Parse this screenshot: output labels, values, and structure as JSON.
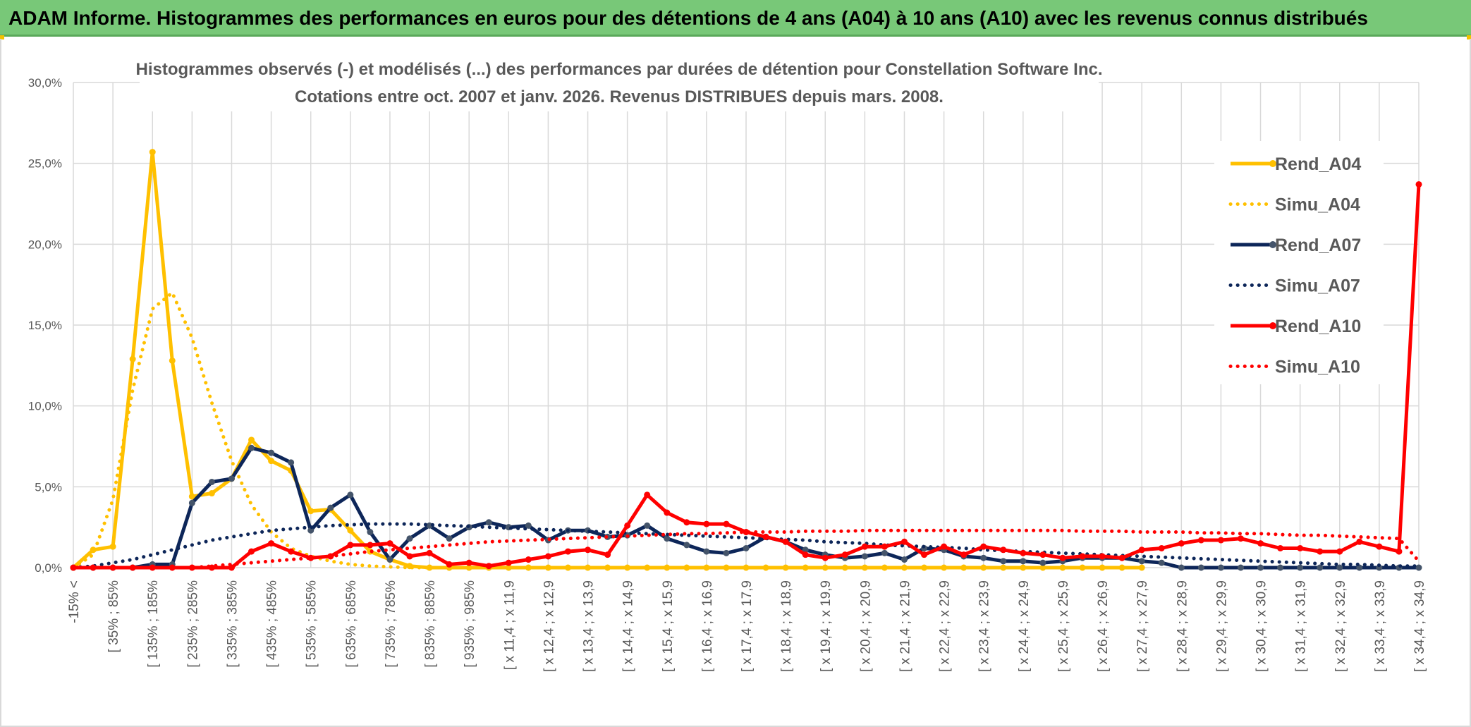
{
  "banner": {
    "title": "ADAM Informe. Histogrammes des performances en euros pour des détentions de 4 ans (A04) à 10 ans (A10) avec les revenus connus distribués"
  },
  "colors": {
    "banner_bg": "#78c878",
    "rend_a04": "#ffc000",
    "simu_a04": "#ffc000",
    "rend_a07": "#0d2659",
    "simu_a07": "#0d2659",
    "rend_a10": "#ff0000",
    "simu_a10": "#ff0000",
    "grid": "#d9d9d9",
    "text": "#595959"
  },
  "chart_data": {
    "type": "line",
    "title_line1": "Histogrammes observés (-) et modélisés (...) des performances par durées de détention pour Constellation Software Inc.",
    "title_line2": "Cotations entre oct. 2007 et janv. 2026. Revenus DISTRIBUES depuis mars. 2008.",
    "xlabel": "",
    "ylabel": "",
    "ylim": [
      0,
      30
    ],
    "yticks": [
      "0,0%",
      "5,0%",
      "10,0%",
      "15,0%",
      "20,0%",
      "25,0%",
      "30,0%"
    ],
    "grid": true,
    "legend_position": "right",
    "x_count": 69,
    "x_tick_labels": [
      "-15% <",
      "[ 35% ; 85%",
      "[ 135% ; 185%",
      "[ 235% ; 285%",
      "[ 335% ; 385%",
      "[ 435% ; 485%",
      "[ 535% ; 585%",
      "[ 635% ; 685%",
      "[ 735% ; 785%",
      "[ 835% ; 885%",
      "[ 935% ; 985%",
      "[ x 11,4 ; x 11,9",
      "[ x 12,4 ; x 12,9",
      "[ x 13,4 ; x 13,9",
      "[ x 14,4 ; x 14,9",
      "[ x 15,4 ; x 15,9",
      "[ x 16,4 ; x 16,9",
      "[ x 17,4 ; x 17,9",
      "[ x 18,4 ; x 18,9",
      "[ x 19,4 ; x 19,9",
      "[ x 20,4 ; x 20,9",
      "[ x 21,4 ; x 21,9",
      "[ x 22,4 ; x 22,9",
      "[ x 23,4 ; x 23,9",
      "[ x 24,4 ; x 24,9",
      "[ x 25,4 ; x 25,9",
      "[ x 26,4 ; x 26,9",
      "[ x 27,4 ; x 27,9",
      "[ x 28,4 ; x 28,9",
      "[ x 29,4 ; x 29,9",
      "[ x 30,4 ; x 30,9",
      "[ x 31,4 ; x 31,9",
      "[ x 32,4 ; x 32,9",
      "[ x 33,4 ; x 33,9",
      "[ x 34,4 ; x 34,9"
    ],
    "series": [
      {
        "name": "Rend_A04",
        "style": "solid",
        "color": "#ffc000",
        "x_range": [
          0,
          54
        ],
        "values": [
          0,
          1.1,
          1.3,
          12.9,
          25.7,
          12.8,
          4.4,
          4.6,
          5.5,
          7.9,
          6.6,
          6.0,
          3.5,
          3.6,
          2.3,
          1.0,
          0.5,
          0.1,
          0,
          0,
          0,
          0,
          0,
          0,
          0,
          0,
          0,
          0,
          0,
          0,
          0,
          0,
          0,
          0,
          0,
          0,
          0,
          0,
          0,
          0,
          0,
          0,
          0,
          0,
          0,
          0,
          0,
          0,
          0,
          0,
          0,
          0,
          0,
          0,
          0
        ]
      },
      {
        "name": "Simu_A04",
        "style": "dotted",
        "color": "#ffc000",
        "x_range": [
          0,
          54
        ],
        "values": [
          0,
          0.8,
          4.2,
          11.0,
          16.0,
          17.0,
          14.2,
          10.2,
          6.6,
          3.9,
          2.2,
          1.2,
          0.7,
          0.4,
          0.2,
          0.1,
          0.05,
          0,
          0,
          0,
          0,
          0,
          0,
          0,
          0,
          0,
          0,
          0,
          0,
          0,
          0,
          0,
          0,
          0,
          0,
          0,
          0,
          0,
          0,
          0,
          0,
          0,
          0,
          0,
          0,
          0,
          0,
          0,
          0,
          0,
          0,
          0,
          0,
          0,
          0
        ]
      },
      {
        "name": "Rend_A07",
        "style": "solid",
        "color": "#0d2659",
        "x_range": [
          0,
          68
        ],
        "values": [
          0,
          0,
          0,
          0,
          0.2,
          0.2,
          4.0,
          5.3,
          5.5,
          7.4,
          7.1,
          6.5,
          2.3,
          3.7,
          4.5,
          2.2,
          0.5,
          1.8,
          2.6,
          1.8,
          2.5,
          2.8,
          2.5,
          2.6,
          1.7,
          2.3,
          2.3,
          1.9,
          2.0,
          2.6,
          1.8,
          1.4,
          1.0,
          0.9,
          1.2,
          1.9,
          1.6,
          1.1,
          0.8,
          0.6,
          0.7,
          0.9,
          0.5,
          1.2,
          1.1,
          0.7,
          0.6,
          0.4,
          0.4,
          0.3,
          0.4,
          0.6,
          0.6,
          0.6,
          0.4,
          0.3,
          0,
          0,
          0,
          0,
          0,
          0,
          0,
          0,
          0,
          0,
          0,
          0,
          0
        ]
      },
      {
        "name": "Simu_A07",
        "style": "dotted",
        "color": "#0d2659",
        "x_range": [
          0,
          68
        ],
        "values": [
          0,
          0.1,
          0.3,
          0.5,
          0.8,
          1.1,
          1.4,
          1.7,
          1.9,
          2.1,
          2.3,
          2.4,
          2.5,
          2.6,
          2.65,
          2.7,
          2.7,
          2.7,
          2.65,
          2.6,
          2.55,
          2.5,
          2.45,
          2.4,
          2.35,
          2.3,
          2.25,
          2.2,
          2.15,
          2.1,
          2.05,
          2.0,
          1.95,
          1.9,
          1.85,
          1.8,
          1.75,
          1.7,
          1.6,
          1.55,
          1.5,
          1.4,
          1.35,
          1.3,
          1.25,
          1.2,
          1.1,
          1.05,
          1.0,
          0.95,
          0.9,
          0.85,
          0.8,
          0.75,
          0.7,
          0.65,
          0.6,
          0.55,
          0.5,
          0.45,
          0.4,
          0.35,
          0.3,
          0.25,
          0.2,
          0.2,
          0.15,
          0.1,
          0.1
        ]
      },
      {
        "name": "Rend_A10",
        "style": "solid",
        "color": "#ff0000",
        "x_range": [
          0,
          68
        ],
        "values": [
          0,
          0,
          0,
          0,
          0,
          0,
          0,
          0,
          0,
          1.0,
          1.5,
          1.0,
          0.6,
          0.7,
          1.4,
          1.4,
          1.5,
          0.7,
          0.9,
          0.2,
          0.3,
          0.1,
          0.3,
          0.5,
          0.7,
          1.0,
          1.1,
          0.8,
          2.6,
          4.5,
          3.4,
          2.8,
          2.7,
          2.7,
          2.2,
          1.9,
          1.6,
          0.8,
          0.6,
          0.8,
          1.3,
          1.3,
          1.6,
          0.8,
          1.3,
          0.8,
          1.3,
          1.1,
          0.9,
          0.8,
          0.6,
          0.7,
          0.7,
          0.6,
          1.1,
          1.2,
          1.5,
          1.7,
          1.7,
          1.8,
          1.5,
          1.2,
          1.2,
          1.0,
          1.0,
          1.6,
          1.3,
          1.0,
          23.7
        ]
      },
      {
        "name": "Simu_A10",
        "style": "dotted",
        "color": "#ff0000",
        "x_range": [
          0,
          68
        ],
        "values": [
          0,
          0,
          0,
          0,
          0,
          0,
          0,
          0.1,
          0.2,
          0.3,
          0.4,
          0.5,
          0.6,
          0.7,
          0.85,
          1.0,
          1.1,
          1.2,
          1.3,
          1.4,
          1.5,
          1.6,
          1.65,
          1.7,
          1.75,
          1.8,
          1.85,
          1.9,
          1.95,
          2.0,
          2.05,
          2.1,
          2.1,
          2.15,
          2.2,
          2.2,
          2.2,
          2.25,
          2.25,
          2.25,
          2.3,
          2.3,
          2.3,
          2.3,
          2.3,
          2.3,
          2.3,
          2.3,
          2.3,
          2.3,
          2.3,
          2.25,
          2.25,
          2.25,
          2.2,
          2.2,
          2.2,
          2.15,
          2.15,
          2.1,
          2.1,
          2.05,
          2.0,
          2.0,
          1.95,
          1.9,
          1.85,
          1.8,
          0.4
        ]
      }
    ]
  }
}
